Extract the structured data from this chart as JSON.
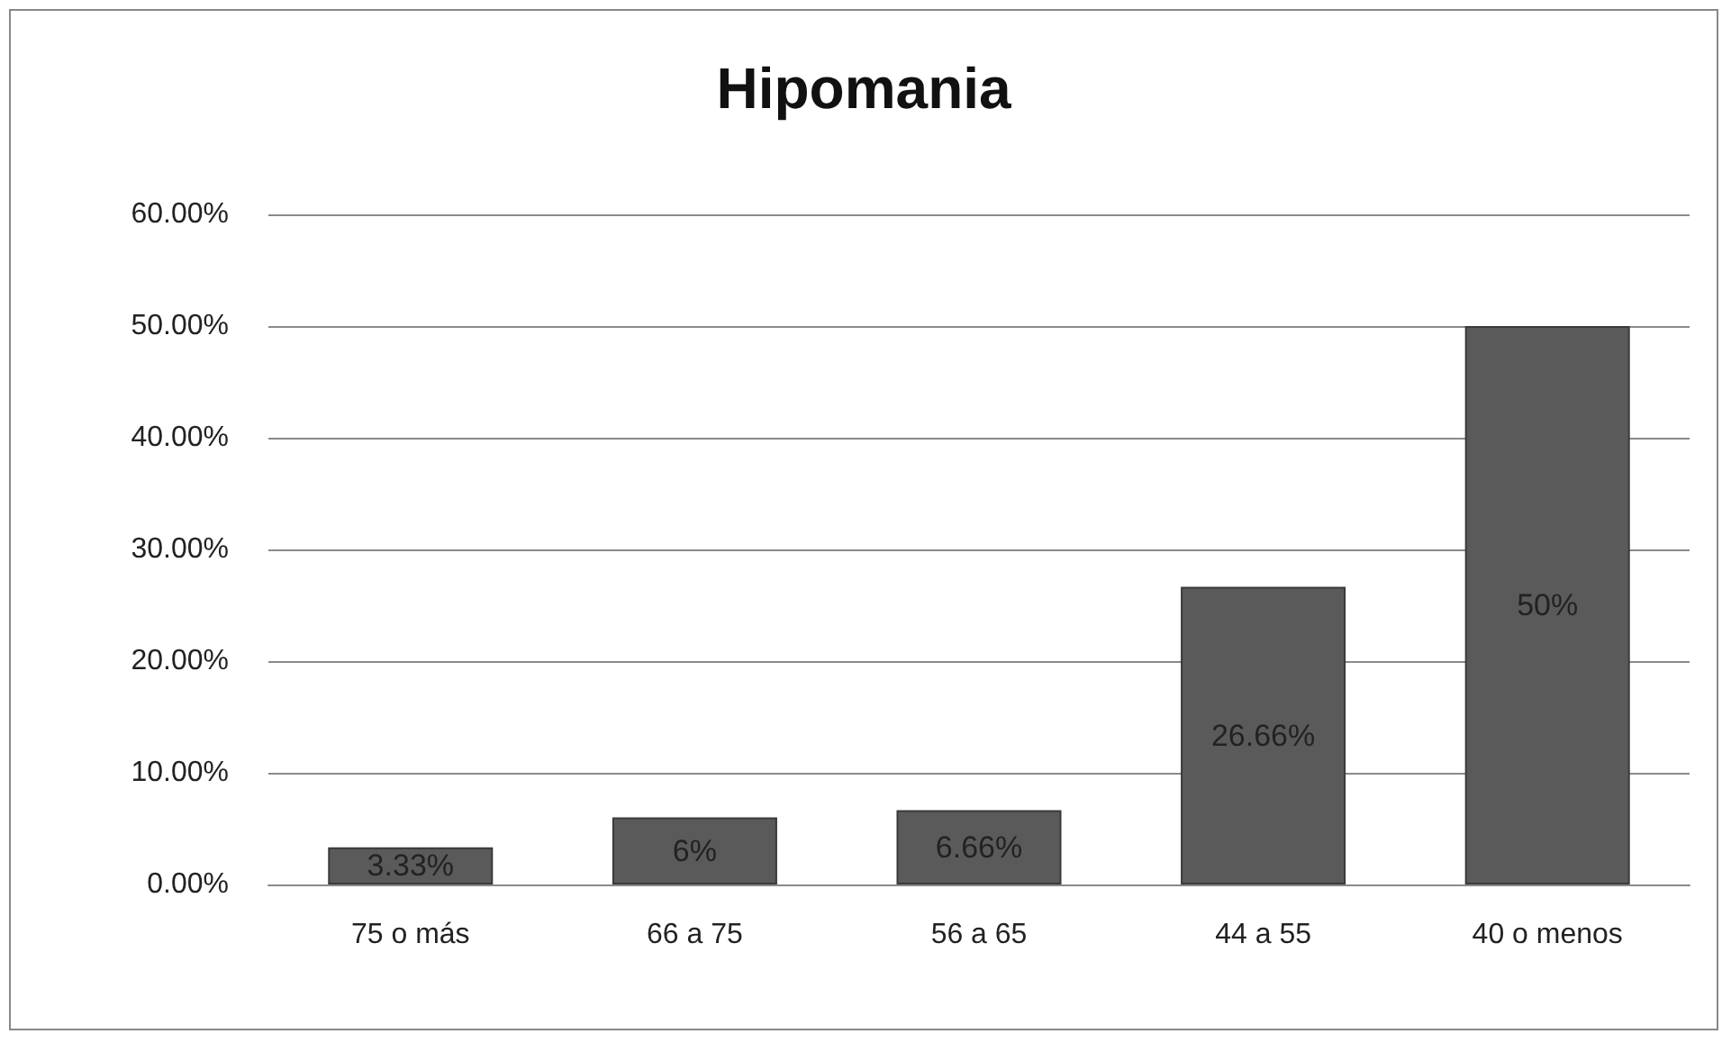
{
  "chart_data": {
    "type": "bar",
    "title": "Hipomania",
    "categories": [
      "75 o más",
      "66 a 75",
      "56 a 65",
      "44 a 55",
      "40 o menos"
    ],
    "values": [
      3.33,
      6,
      6.66,
      26.66,
      50
    ],
    "value_labels": [
      "3.33%",
      "6%",
      "6.66%",
      "26.66%",
      "50%"
    ],
    "color": "#5a5a5a",
    "ylim": [
      0,
      60
    ],
    "yticks": [
      {
        "value": 0,
        "label": "0.00%"
      },
      {
        "value": 10,
        "label": "10.00%"
      },
      {
        "value": 20,
        "label": "20.00%"
      },
      {
        "value": 30,
        "label": "30.00%"
      },
      {
        "value": 40,
        "label": "40.00%"
      },
      {
        "value": 50,
        "label": "50.00%"
      },
      {
        "value": 60,
        "label": "60.00%"
      }
    ],
    "grid": "y"
  }
}
